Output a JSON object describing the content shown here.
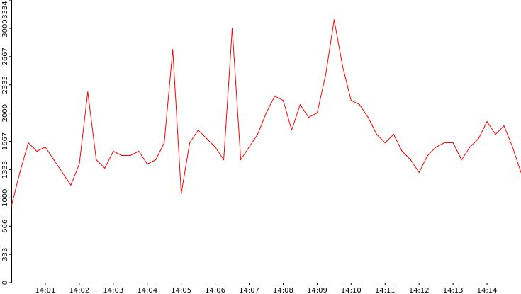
{
  "chart_data": {
    "type": "line",
    "title": "",
    "xlabel": "",
    "ylabel": "",
    "ylim": [
      0,
      3334
    ],
    "yticks": [
      {
        "value": 0,
        "label": "0"
      },
      {
        "value": 333,
        "label": "333"
      },
      {
        "value": 666,
        "label": "666"
      },
      {
        "value": 1000,
        "label": "1000"
      },
      {
        "value": 1333,
        "label": "1333"
      },
      {
        "value": 1667,
        "label": "1667"
      },
      {
        "value": 2000,
        "label": "2000"
      },
      {
        "value": 2333,
        "label": "2333"
      },
      {
        "value": 2667,
        "label": "2667"
      },
      {
        "value": 3000,
        "label": "3000"
      },
      {
        "value": 3334,
        "label": "3334"
      }
    ],
    "xlim": [
      "14:00",
      "14:15"
    ],
    "xticks": [
      "14:01",
      "14:02",
      "14:03",
      "14:04",
      "14:05",
      "14:06",
      "14:07",
      "14:08",
      "14:09",
      "14:10",
      "14:11",
      "14:12",
      "14:13",
      "14:14"
    ],
    "grid": false,
    "legend": "none",
    "series": [
      {
        "color": "#ff0000",
        "x": [
          "14:00:00",
          "14:00:15",
          "14:00:30",
          "14:00:45",
          "14:01:00",
          "14:01:15",
          "14:01:30",
          "14:01:45",
          "14:02:00",
          "14:02:15",
          "14:02:30",
          "14:02:45",
          "14:03:00",
          "14:03:15",
          "14:03:30",
          "14:03:45",
          "14:04:00",
          "14:04:15",
          "14:04:30",
          "14:04:45",
          "14:05:00",
          "14:05:15",
          "14:05:30",
          "14:05:45",
          "14:06:00",
          "14:06:15",
          "14:06:30",
          "14:06:45",
          "14:07:00",
          "14:07:15",
          "14:07:30",
          "14:07:45",
          "14:08:00",
          "14:08:15",
          "14:08:30",
          "14:08:45",
          "14:09:00",
          "14:09:15",
          "14:09:30",
          "14:09:45",
          "14:10:00",
          "14:10:15",
          "14:10:30",
          "14:10:45",
          "14:11:00",
          "14:11:15",
          "14:11:30",
          "14:11:45",
          "14:12:00",
          "14:12:15",
          "14:12:30",
          "14:12:45",
          "14:13:00",
          "14:13:15",
          "14:13:30",
          "14:13:45",
          "14:14:00",
          "14:14:15",
          "14:14:30",
          "14:14:45",
          "14:15:00"
        ],
        "y": [
          900,
          1300,
          1650,
          1550,
          1600,
          1450,
          1300,
          1150,
          1400,
          2250,
          1450,
          1350,
          1550,
          1500,
          1500,
          1550,
          1400,
          1450,
          1650,
          2750,
          1050,
          1650,
          1800,
          1700,
          1600,
          1450,
          3000,
          1450,
          1600,
          1750,
          2000,
          2200,
          2150,
          1800,
          2100,
          1950,
          2000,
          2450,
          3100,
          2550,
          2150,
          2100,
          1950,
          1750,
          1650,
          1750,
          1550,
          1450,
          1300,
          1500,
          1600,
          1650,
          1650,
          1450,
          1600,
          1700,
          1900,
          1750,
          1850,
          1600,
          1300
        ]
      }
    ]
  }
}
